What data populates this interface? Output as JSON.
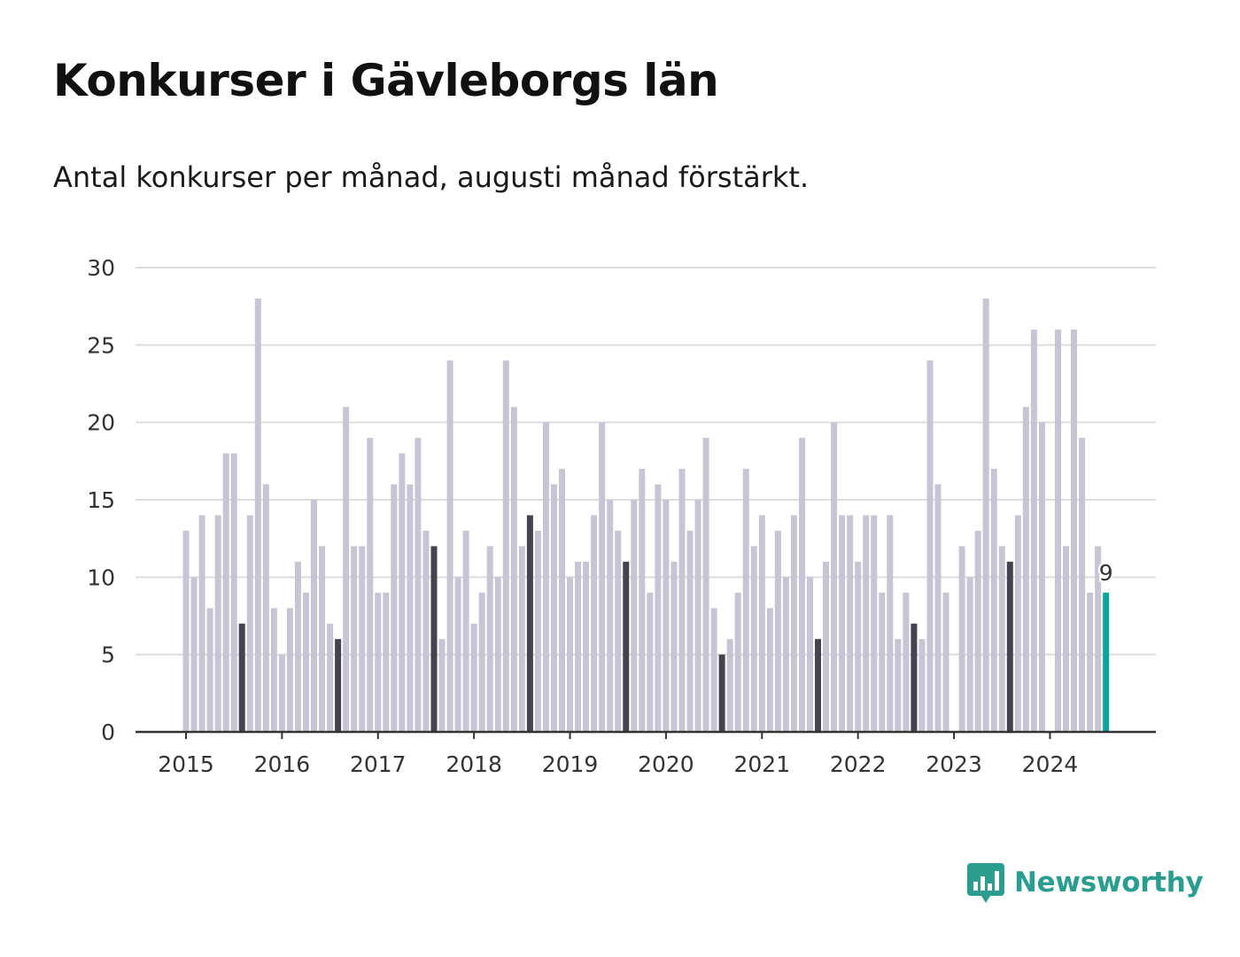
{
  "title": "Konkurser i Gävleborgs län",
  "subtitle": "Antal konkurser per månad, augusti månad förstärkt.",
  "brand": {
    "name": "Newsworthy",
    "icon": "newsworthy-logo-icon",
    "color": "#2a9d8f"
  },
  "colors": {
    "default_bar": "#c6c5d3",
    "august_bar": "#44434f",
    "latest_bar": "#0aa59a",
    "grid": "#dddddd",
    "axis": "#333333"
  },
  "chart_data": {
    "type": "bar",
    "title": "Konkurser i Gävleborgs län",
    "subtitle": "Antal konkurser per månad, augusti månad förstärkt.",
    "xlabel": "",
    "ylabel": "",
    "ylim": [
      0,
      30
    ],
    "yticks": [
      "0",
      "5",
      "10",
      "15",
      "20",
      "25",
      "30"
    ],
    "xticks": [
      "2015",
      "2016",
      "2017",
      "2018",
      "2019",
      "2020",
      "2021",
      "2022",
      "2023",
      "2024"
    ],
    "grid": true,
    "start": "2015-01",
    "highlight_month": "augusti",
    "annotation": {
      "label": "9",
      "month": "2024-08"
    },
    "values": [
      13,
      10,
      14,
      8,
      14,
      18,
      18,
      7,
      14,
      28,
      16,
      8,
      5,
      8,
      11,
      9,
      15,
      12,
      7,
      6,
      21,
      12,
      12,
      19,
      9,
      9,
      16,
      18,
      16,
      19,
      13,
      12,
      6,
      24,
      10,
      13,
      7,
      9,
      12,
      10,
      24,
      21,
      12,
      14,
      13,
      20,
      16,
      17,
      10,
      11,
      11,
      14,
      20,
      15,
      13,
      11,
      15,
      17,
      9,
      16,
      15,
      11,
      17,
      13,
      15,
      19,
      8,
      5,
      6,
      9,
      17,
      12,
      14,
      8,
      13,
      10,
      14,
      19,
      10,
      6,
      11,
      20,
      14,
      14,
      11,
      14,
      14,
      9,
      14,
      6,
      9,
      7,
      6,
      24,
      16,
      9,
      0,
      12,
      10,
      13,
      28,
      17,
      12,
      11,
      14,
      21,
      26,
      20,
      0,
      26,
      12,
      26,
      19,
      9,
      12,
      9
    ]
  }
}
